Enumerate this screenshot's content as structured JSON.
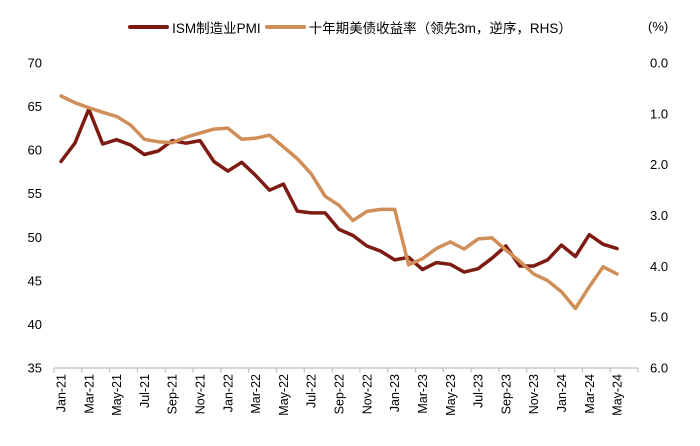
{
  "chart_data": {
    "type": "line",
    "title": "",
    "rhs_unit_label": "(%)",
    "grid": false,
    "legend_position": "top-center",
    "x": [
      "Jan-21",
      "Feb-21",
      "Mar-21",
      "Apr-21",
      "May-21",
      "Jun-21",
      "Jul-21",
      "Aug-21",
      "Sep-21",
      "Oct-21",
      "Nov-21",
      "Dec-21",
      "Jan-22",
      "Feb-22",
      "Mar-22",
      "Apr-22",
      "May-22",
      "Jun-22",
      "Jul-22",
      "Aug-22",
      "Sep-22",
      "Oct-22",
      "Nov-22",
      "Dec-22",
      "Jan-23",
      "Feb-23",
      "Mar-23",
      "Apr-23",
      "May-23",
      "Jun-23",
      "Jul-23",
      "Aug-23",
      "Sep-23",
      "Oct-23",
      "Nov-23",
      "Dec-23",
      "Jan-24",
      "Feb-24",
      "Mar-24",
      "Apr-24",
      "May-24"
    ],
    "x_tick_labels": [
      "Jan-21",
      "Mar-21",
      "May-21",
      "Jul-21",
      "Sep-21",
      "Nov-21",
      "Jan-22",
      "Mar-22",
      "May-22",
      "Jul-22",
      "Sep-22",
      "Nov-22",
      "Jan-23",
      "Mar-23",
      "May-23",
      "Jul-23",
      "Sep-23",
      "Nov-23",
      "Jan-24",
      "Mar-24",
      "May-24"
    ],
    "series": [
      {
        "name": "ISM制造业PMI",
        "axis": "left",
        "color": "#7d1b12",
        "values": [
          58.7,
          60.8,
          64.7,
          60.7,
          61.2,
          60.6,
          59.5,
          59.9,
          61.1,
          60.8,
          61.1,
          58.7,
          57.6,
          58.6,
          57.1,
          55.4,
          56.1,
          53.0,
          52.8,
          52.8,
          50.9,
          50.2,
          49.0,
          48.4,
          47.4,
          47.7,
          46.3,
          47.1,
          46.9,
          46.0,
          46.4,
          47.6,
          49.0,
          46.7,
          46.7,
          47.4,
          49.1,
          47.8,
          50.3,
          49.2,
          48.7
        ]
      },
      {
        "name": "十年期美债收益率（领先3m，逆序，RHS）",
        "axis": "right",
        "color": "#d08e58",
        "values": [
          0.65,
          0.78,
          0.88,
          0.97,
          1.05,
          1.22,
          1.5,
          1.55,
          1.57,
          1.46,
          1.38,
          1.3,
          1.28,
          1.5,
          1.48,
          1.42,
          1.65,
          1.88,
          2.18,
          2.62,
          2.8,
          3.1,
          2.92,
          2.88,
          2.88,
          3.97,
          3.85,
          3.65,
          3.52,
          3.66,
          3.46,
          3.44,
          3.68,
          3.9,
          4.15,
          4.28,
          4.5,
          4.83,
          4.4,
          4.01,
          4.15
        ]
      }
    ],
    "left_axis": {
      "min": 35,
      "max": 70,
      "ticks": [
        {
          "label": "70",
          "v": 70
        },
        {
          "label": "65",
          "v": 65
        },
        {
          "label": "60",
          "v": 60
        },
        {
          "label": "55",
          "v": 55
        },
        {
          "label": "50",
          "v": 50
        },
        {
          "label": "45",
          "v": 45
        },
        {
          "label": "40",
          "v": 40
        },
        {
          "label": "35",
          "v": 35
        }
      ]
    },
    "right_axis": {
      "min": 0,
      "max": 6,
      "inverted": true,
      "ticks": [
        {
          "label": "0.0",
          "v": 0
        },
        {
          "label": "1.0",
          "v": 1
        },
        {
          "label": "2.0",
          "v": 2
        },
        {
          "label": "3.0",
          "v": 3
        },
        {
          "label": "4.0",
          "v": 4
        },
        {
          "label": "5.0",
          "v": 5
        },
        {
          "label": "6.0",
          "v": 6
        }
      ]
    },
    "axis_color": "#bfbfbf",
    "tick_label_color": "#000000"
  }
}
